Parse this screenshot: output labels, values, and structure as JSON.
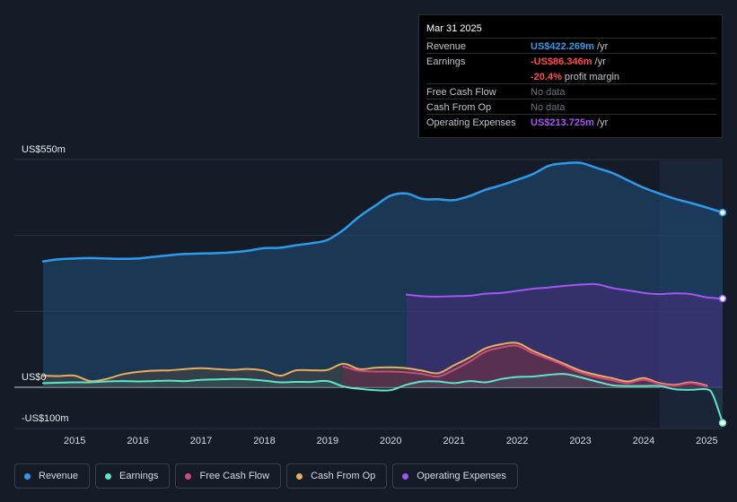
{
  "tooltip": {
    "date": "Mar 31 2025",
    "rows": [
      {
        "label": "Revenue",
        "value": "US$422.269m",
        "unit": " /yr",
        "color": "#2e9bea"
      },
      {
        "label": "Earnings",
        "value": "-US$86.346m",
        "unit": " /yr",
        "color": "#ff4b4b"
      },
      {
        "label": "Free Cash Flow",
        "nodata": "No data"
      },
      {
        "label": "Cash From Op",
        "nodata": "No data"
      },
      {
        "label": "Operating Expenses",
        "value": "US$213.725m",
        "unit": " /yr",
        "color": "#a455f5"
      }
    ],
    "margin_value": "-20.4%",
    "margin_label": " profit margin"
  },
  "legend": [
    {
      "label": "Revenue",
      "color": "#2e9bea"
    },
    {
      "label": "Earnings",
      "color": "#5ee6c8"
    },
    {
      "label": "Free Cash Flow",
      "color": "#d0497b"
    },
    {
      "label": "Cash From Op",
      "color": "#e8ad5e"
    },
    {
      "label": "Operating Expenses",
      "color": "#a455f5"
    }
  ],
  "chart_data": {
    "type": "area",
    "title": "",
    "xlabel": "",
    "ylabel": "",
    "y_tick_labels": [
      {
        "value": 550,
        "label": "US$550m"
      },
      {
        "value": 0,
        "label": "US$0"
      },
      {
        "value": -100,
        "label": "-US$100m"
      }
    ],
    "ylim": [
      -100,
      550
    ],
    "xlim": [
      2014.5,
      2025.25
    ],
    "x_ticks": [
      "2015",
      "2016",
      "2017",
      "2018",
      "2019",
      "2020",
      "2021",
      "2022",
      "2023",
      "2024",
      "2025"
    ],
    "forecast_region_start": 2024.25,
    "series": [
      {
        "name": "Revenue",
        "color": "#2e9bea",
        "x": [
          2014.5,
          2014.75,
          2015.0,
          2015.25,
          2015.5,
          2015.75,
          2016.0,
          2016.25,
          2016.5,
          2016.75,
          2017.0,
          2017.25,
          2017.5,
          2017.75,
          2018.0,
          2018.25,
          2018.5,
          2018.75,
          2019.0,
          2019.25,
          2019.5,
          2019.75,
          2020.0,
          2020.25,
          2020.5,
          2020.75,
          2021.0,
          2021.25,
          2021.5,
          2021.75,
          2022.0,
          2022.25,
          2022.5,
          2022.75,
          2023.0,
          2023.25,
          2023.5,
          2023.75,
          2024.0,
          2024.25,
          2024.5,
          2024.75,
          2025.0,
          2025.25
        ],
        "y": [
          304,
          309,
          311,
          312,
          311,
          310,
          311,
          315,
          319,
          322,
          323,
          324,
          326,
          330,
          336,
          337,
          343,
          348,
          356,
          380,
          412,
          438,
          463,
          468,
          455,
          454,
          452,
          462,
          477,
          488,
          501,
          515,
          535,
          541,
          542,
          530,
          518,
          500,
          482,
          468,
          455,
          445,
          434,
          422
        ]
      },
      {
        "name": "Operating Expenses",
        "color": "#a455f5",
        "x": [
          2020.25,
          2020.5,
          2020.75,
          2021.0,
          2021.25,
          2021.5,
          2021.75,
          2022.0,
          2022.25,
          2022.5,
          2022.75,
          2023.0,
          2023.25,
          2023.5,
          2023.75,
          2024.0,
          2024.25,
          2024.5,
          2024.75,
          2025.0,
          2025.25
        ],
        "y": [
          224,
          220,
          219,
          220,
          221,
          226,
          228,
          233,
          238,
          241,
          245,
          248,
          249,
          240,
          234,
          228,
          225,
          227,
          225,
          217,
          214
        ]
      },
      {
        "name": "Cash From Op",
        "color": "#e8ad5e",
        "x": [
          2014.5,
          2014.75,
          2015.0,
          2015.25,
          2015.5,
          2015.75,
          2016.0,
          2016.25,
          2016.5,
          2016.75,
          2017.0,
          2017.25,
          2017.5,
          2017.75,
          2018.0,
          2018.25,
          2018.5,
          2018.75,
          2019.0,
          2019.25,
          2019.5,
          2019.75,
          2020.0,
          2020.25,
          2020.5,
          2020.75,
          2021.0,
          2021.25,
          2021.5,
          2021.75,
          2022.0,
          2022.25,
          2022.5,
          2022.75,
          2023.0,
          2023.25,
          2023.5,
          2023.75,
          2024.0,
          2024.25,
          2024.5,
          2024.75,
          2025.0
        ],
        "y": [
          28,
          27,
          28,
          15,
          20,
          31,
          37,
          40,
          41,
          44,
          46,
          44,
          42,
          44,
          40,
          28,
          41,
          41,
          42,
          57,
          44,
          47,
          48,
          46,
          40,
          34,
          53,
          72,
          94,
          104,
          107,
          88,
          72,
          56,
          40,
          30,
          22,
          14,
          22,
          10,
          6,
          12,
          4
        ]
      },
      {
        "name": "Free Cash Flow",
        "color": "#d0497b",
        "x": [
          2019.25,
          2019.5,
          2019.75,
          2020.0,
          2020.25,
          2020.5,
          2020.75,
          2021.0,
          2021.25,
          2021.5,
          2021.75,
          2022.0,
          2022.25,
          2022.5,
          2022.75,
          2023.0,
          2023.25,
          2023.5,
          2023.75,
          2024.0,
          2024.25,
          2024.5,
          2024.75,
          2025.0
        ],
        "y": [
          50,
          40,
          38,
          38,
          36,
          32,
          26,
          42,
          62,
          86,
          96,
          100,
          82,
          68,
          52,
          35,
          25,
          17,
          10,
          18,
          8,
          4,
          10,
          2
        ]
      },
      {
        "name": "Earnings",
        "color": "#5ee6c8",
        "x": [
          2014.5,
          2014.75,
          2015.0,
          2015.25,
          2015.5,
          2015.75,
          2016.0,
          2016.25,
          2016.5,
          2016.75,
          2017.0,
          2017.25,
          2017.5,
          2017.75,
          2018.0,
          2018.25,
          2018.5,
          2018.75,
          2019.0,
          2019.25,
          2019.5,
          2019.75,
          2020.0,
          2020.25,
          2020.5,
          2020.75,
          2021.0,
          2021.25,
          2021.5,
          2021.75,
          2022.0,
          2022.25,
          2022.5,
          2022.75,
          2023.0,
          2023.25,
          2023.5,
          2023.75,
          2024.0,
          2024.25,
          2024.5,
          2024.75,
          2025.0,
          2025.1,
          2025.25
        ],
        "y": [
          10,
          11,
          12,
          12,
          14,
          15,
          14,
          15,
          16,
          15,
          18,
          19,
          20,
          19,
          16,
          12,
          13,
          13,
          15,
          2,
          -4,
          -7,
          -7,
          6,
          14,
          14,
          10,
          15,
          12,
          20,
          25,
          26,
          30,
          32,
          24,
          14,
          5,
          3,
          3,
          3,
          -5,
          -6,
          -5,
          -20,
          -86
        ]
      }
    ]
  }
}
